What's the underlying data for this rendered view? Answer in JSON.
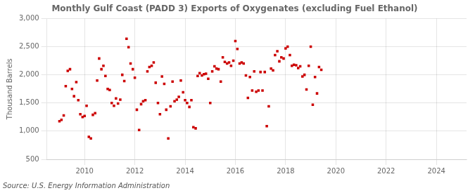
{
  "chart_data": {
    "type": "scatter",
    "title": "Monthly Gulf Coast (PADD 3) Exports of Oxygenates (excluding Fuel Ethanol)",
    "ylabel": "Thousand Barrels",
    "annotations": [
      "Source: U.S. Energy Information Administration"
    ],
    "color": "#cc0000",
    "marker": "square",
    "grid": true,
    "xlim": [
      2008.5,
      2025.2
    ],
    "ylim": [
      500,
      3000
    ],
    "xticks": [
      2010,
      2012,
      2014,
      2016,
      2018,
      2020,
      2022,
      2024
    ],
    "yticks": [
      500,
      {
        "value": 1000,
        "label": "1,000"
      },
      {
        "value": 1500,
        "label": "1,500"
      },
      {
        "value": 2000,
        "label": "2,000"
      },
      {
        "value": 2500,
        "label": "2,500"
      },
      {
        "value": 3000,
        "label": "3,000"
      }
    ],
    "x": [
      2009.0,
      2009.08,
      2009.17,
      2009.25,
      2009.33,
      2009.42,
      2009.5,
      2009.58,
      2009.67,
      2009.75,
      2009.83,
      2009.92,
      2010.0,
      2010.08,
      2010.17,
      2010.25,
      2010.33,
      2010.42,
      2010.5,
      2010.58,
      2010.67,
      2010.75,
      2010.83,
      2010.92,
      2011.0,
      2011.08,
      2011.17,
      2011.25,
      2011.33,
      2011.42,
      2011.5,
      2011.58,
      2011.67,
      2011.75,
      2011.83,
      2011.92,
      2012.0,
      2012.08,
      2012.17,
      2012.25,
      2012.33,
      2012.42,
      2012.5,
      2012.58,
      2012.67,
      2012.75,
      2012.83,
      2012.92,
      2013.0,
      2013.08,
      2013.17,
      2013.25,
      2013.33,
      2013.42,
      2013.5,
      2013.58,
      2013.67,
      2013.75,
      2013.83,
      2013.92,
      2014.0,
      2014.08,
      2014.17,
      2014.25,
      2014.33,
      2014.42,
      2014.5,
      2014.58,
      2014.67,
      2014.75,
      2014.83,
      2014.92,
      2015.0,
      2015.08,
      2015.17,
      2015.25,
      2015.33,
      2015.42,
      2015.5,
      2015.58,
      2015.67,
      2015.75,
      2015.83,
      2015.92,
      2016.0,
      2016.08,
      2016.17,
      2016.25,
      2016.33,
      2016.42,
      2016.5,
      2016.58,
      2016.67,
      2016.75,
      2016.83,
      2016.92,
      2017.0,
      2017.08,
      2017.17,
      2017.25,
      2017.33,
      2017.42,
      2017.5,
      2017.58,
      2017.67,
      2017.75,
      2017.83,
      2017.92,
      2018.0,
      2018.08,
      2018.17,
      2018.25,
      2018.33,
      2018.42,
      2018.5,
      2018.58,
      2018.67,
      2018.75,
      2018.83,
      2018.92,
      2019.0,
      2019.08,
      2019.17,
      2019.25,
      2019.33,
      2019.42
    ],
    "values": [
      1175,
      1200,
      1280,
      1800,
      2070,
      2100,
      1750,
      1620,
      1870,
      1550,
      1300,
      1250,
      1270,
      1450,
      900,
      870,
      1290,
      1320,
      1900,
      2290,
      2100,
      2160,
      1980,
      1750,
      1730,
      1500,
      1450,
      1580,
      1490,
      1560,
      2000,
      1890,
      2640,
      2490,
      2200,
      2100,
      1950,
      1380,
      1020,
      1480,
      1530,
      1550,
      2060,
      2140,
      2160,
      2220,
      1860,
      1500,
      1300,
      1970,
      1840,
      1380,
      870,
      1440,
      1880,
      1530,
      1560,
      1610,
      1900,
      1690,
      1550,
      1500,
      1430,
      1550,
      1070,
      1050,
      1980,
      2030,
      1990,
      2010,
      2020,
      1930,
      1500,
      2060,
      2150,
      2110,
      2100,
      1880,
      2310,
      2230,
      2200,
      2220,
      2160,
      2250,
      2600,
      2460,
      2200,
      2220,
      2200,
      1990,
      1590,
      1960,
      1720,
      2060,
      1700,
      1720,
      2050,
      1720,
      2050,
      1090,
      1440,
      2110,
      2080,
      2350,
      2420,
      2240,
      2310,
      2290,
      2470,
      2500,
      2350,
      2160,
      2180,
      2170,
      2120,
      2150,
      1970,
      2000,
      1740,
      2160,
      2500,
      1470,
      1960,
      1670,
      2140,
      2090
    ]
  }
}
